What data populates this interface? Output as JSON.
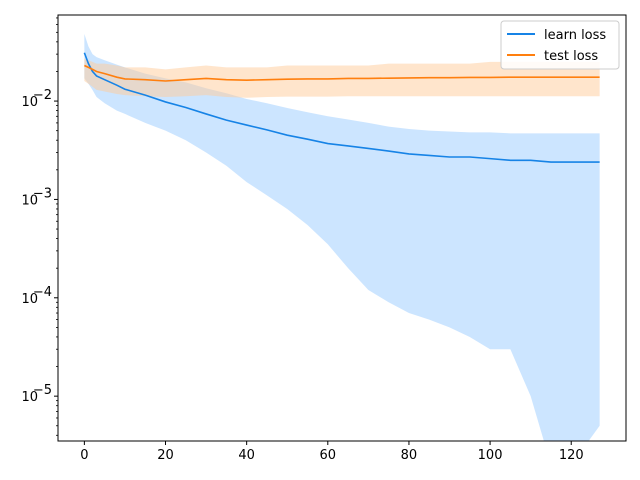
{
  "chart_data": {
    "type": "line",
    "title": "",
    "xlabel": "",
    "ylabel": "",
    "x_range": [
      -6.5,
      133.5
    ],
    "y_range": [
      3.5e-06,
      0.075
    ],
    "y_scale": "log",
    "grid": false,
    "legend_placement": "top-right",
    "x_ticks": [
      {
        "value": 0,
        "label": "0"
      },
      {
        "value": 20,
        "label": "20"
      },
      {
        "value": 40,
        "label": "40"
      },
      {
        "value": 60,
        "label": "60"
      },
      {
        "value": 80,
        "label": "80"
      },
      {
        "value": 100,
        "label": "100"
      },
      {
        "value": 120,
        "label": "120"
      }
    ],
    "y_ticks": [
      {
        "value": 1e-05,
        "base": "10",
        "exp": "−5"
      },
      {
        "value": 0.0001,
        "base": "10",
        "exp": "−4"
      },
      {
        "value": 0.001,
        "base": "10",
        "exp": "−3"
      },
      {
        "value": 0.01,
        "base": "10",
        "exp": "−2"
      }
    ],
    "series": [
      {
        "name": "learn loss",
        "color": "#1683e6",
        "band_color": "#99cbff",
        "x": [
          0,
          1,
          2,
          3,
          5,
          8,
          10,
          15,
          20,
          25,
          30,
          35,
          40,
          45,
          50,
          55,
          60,
          65,
          70,
          75,
          80,
          85,
          90,
          95,
          100,
          105,
          110,
          115,
          120,
          127
        ],
        "mean": [
          0.031,
          0.024,
          0.02,
          0.018,
          0.0165,
          0.0145,
          0.0132,
          0.0115,
          0.0098,
          0.0086,
          0.0074,
          0.0064,
          0.0057,
          0.0051,
          0.0045,
          0.0041,
          0.0037,
          0.0035,
          0.0033,
          0.0031,
          0.0029,
          0.0028,
          0.0027,
          0.0027,
          0.0026,
          0.0025,
          0.0025,
          0.0024,
          0.0024,
          0.0024
        ],
        "upper": [
          0.048,
          0.036,
          0.03,
          0.028,
          0.026,
          0.0235,
          0.022,
          0.019,
          0.017,
          0.0155,
          0.0135,
          0.012,
          0.0105,
          0.0095,
          0.0085,
          0.0077,
          0.007,
          0.0065,
          0.006,
          0.0055,
          0.0052,
          0.005,
          0.0049,
          0.0048,
          0.0048,
          0.0047,
          0.0047,
          0.0047,
          0.0047,
          0.0047
        ],
        "lower": [
          0.017,
          0.015,
          0.013,
          0.011,
          0.0095,
          0.008,
          0.0074,
          0.006,
          0.005,
          0.004,
          0.003,
          0.0022,
          0.0015,
          0.0011,
          0.0008,
          0.00055,
          0.00035,
          0.0002,
          0.00012,
          9e-05,
          7e-05,
          6e-05,
          5e-05,
          4e-05,
          3e-05,
          3e-05,
          1e-05,
          2e-06,
          2e-06,
          5e-06
        ]
      },
      {
        "name": "test loss",
        "color": "#ff7f0e",
        "band_color": "#ffcc99",
        "x": [
          0,
          1,
          2,
          3,
          5,
          8,
          10,
          15,
          20,
          25,
          30,
          35,
          40,
          45,
          50,
          55,
          60,
          65,
          70,
          75,
          80,
          85,
          90,
          95,
          100,
          105,
          110,
          115,
          120,
          127
        ],
        "mean": [
          0.023,
          0.022,
          0.021,
          0.02,
          0.019,
          0.0175,
          0.0168,
          0.0165,
          0.016,
          0.0165,
          0.017,
          0.0165,
          0.0163,
          0.0165,
          0.0167,
          0.0168,
          0.0168,
          0.017,
          0.017,
          0.0171,
          0.0172,
          0.0173,
          0.0173,
          0.0174,
          0.0174,
          0.0175,
          0.0175,
          0.0175,
          0.0175,
          0.0175
        ],
        "upper": [
          0.027,
          0.026,
          0.025,
          0.024,
          0.024,
          0.023,
          0.022,
          0.022,
          0.021,
          0.022,
          0.023,
          0.022,
          0.022,
          0.022,
          0.023,
          0.023,
          0.023,
          0.023,
          0.023,
          0.024,
          0.024,
          0.024,
          0.024,
          0.024,
          0.025,
          0.025,
          0.025,
          0.025,
          0.025,
          0.025
        ],
        "lower": [
          0.016,
          0.015,
          0.014,
          0.013,
          0.0125,
          0.0118,
          0.0115,
          0.0112,
          0.011,
          0.0112,
          0.0115,
          0.011,
          0.0108,
          0.011,
          0.0111,
          0.0111,
          0.0111,
          0.0112,
          0.0112,
          0.0112,
          0.0112,
          0.0112,
          0.0112,
          0.0112,
          0.0112,
          0.0112,
          0.0112,
          0.0112,
          0.0112,
          0.0112
        ]
      }
    ]
  }
}
